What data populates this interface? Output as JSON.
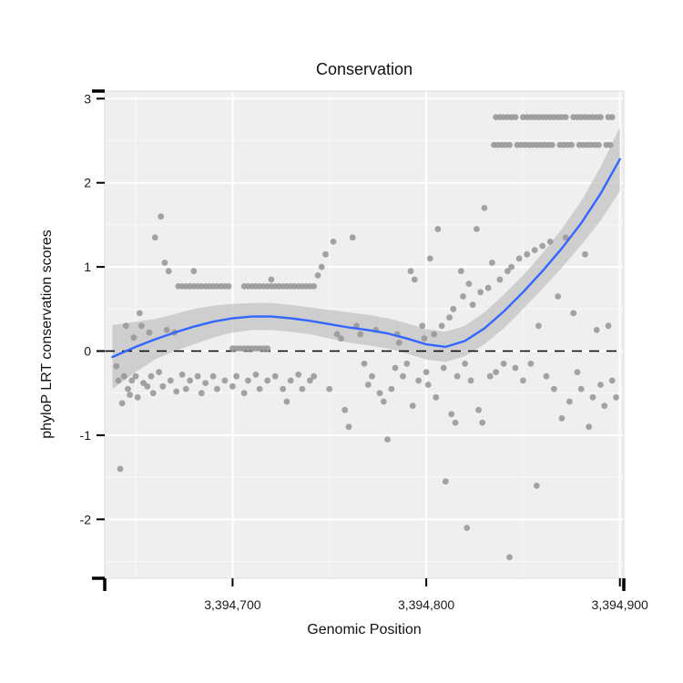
{
  "chart_data": {
    "type": "scatter",
    "title": "Conservation",
    "xlabel": "Genomic Position",
    "ylabel": "phyloP LRT conservation scores",
    "xlim": [
      3394634,
      3394902
    ],
    "ylim": [
      -2.7,
      3.09
    ],
    "x_ticks": [
      {
        "value": 3394700,
        "label": "3,394,700"
      },
      {
        "value": 3394800,
        "label": "3,394,800"
      },
      {
        "value": 3394900,
        "label": "3,394,900"
      }
    ],
    "y_ticks": [
      {
        "value": -2,
        "label": "-2"
      },
      {
        "value": -1,
        "label": "-1"
      },
      {
        "value": 0,
        "label": "0"
      },
      {
        "value": 1,
        "label": "1"
      },
      {
        "value": 2,
        "label": "2"
      },
      {
        "value": 3,
        "label": "3"
      }
    ],
    "x_minor": [
      3394650,
      3394750,
      3394850
    ],
    "y_minor": [
      -2.5,
      -1.5,
      -0.5,
      0.5,
      1.5,
      2.5
    ],
    "reference_line_y": 0,
    "grid": true,
    "legend": "none",
    "colors": {
      "panel": "#efefef",
      "grid_major": "#ffffff",
      "grid_minor": "#f7f7f7",
      "point": "#999999",
      "smooth_line": "#3366FF",
      "band": "#b8b8b8",
      "axis_text": "#1a1a1a",
      "tick": "#000000",
      "reference_line": "#000000",
      "panel_border": "#dcdcdc"
    },
    "points": [
      [
        3394640,
        -0.18
      ],
      [
        3394641,
        -0.35
      ],
      [
        3394642,
        -1.4
      ],
      [
        3394643,
        -0.62
      ],
      [
        3394644,
        -0.3
      ],
      [
        3394645,
        0.3
      ],
      [
        3394646,
        -0.45
      ],
      [
        3394647,
        -0.52
      ],
      [
        3394648,
        -0.35
      ],
      [
        3394649,
        0.16
      ],
      [
        3394650,
        -0.3
      ],
      [
        3394651,
        -0.55
      ],
      [
        3394652,
        0.45
      ],
      [
        3394653,
        0.3
      ],
      [
        3394654,
        -0.38
      ],
      [
        3394656,
        -0.42
      ],
      [
        3394657,
        0.22
      ],
      [
        3394658,
        -0.3
      ],
      [
        3394659,
        -0.5
      ],
      [
        3394660,
        1.35
      ],
      [
        3394662,
        -0.25
      ],
      [
        3394663,
        1.6
      ],
      [
        3394664,
        -0.42
      ],
      [
        3394665,
        1.05
      ],
      [
        3394666,
        0.25
      ],
      [
        3394667,
        0.95
      ],
      [
        3394668,
        -0.35
      ],
      [
        3394670,
        0.22
      ],
      [
        3394671,
        -0.48
      ],
      [
        3394674,
        -0.28
      ],
      [
        3394676,
        -0.45
      ],
      [
        3394678,
        -0.35
      ],
      [
        3394680,
        0.95
      ],
      [
        3394682,
        -0.3
      ],
      [
        3394684,
        -0.5
      ],
      [
        3394686,
        -0.38
      ],
      [
        3394690,
        -0.3
      ],
      [
        3394692,
        -0.45
      ],
      [
        3394696,
        -0.35
      ],
      [
        3394700,
        -0.42
      ],
      [
        3394702,
        -0.3
      ],
      [
        3394706,
        -0.5
      ],
      [
        3394708,
        -0.35
      ],
      [
        3394712,
        -0.28
      ],
      [
        3394714,
        -0.45
      ],
      [
        3394718,
        -0.35
      ],
      [
        3394720,
        0.85
      ],
      [
        3394722,
        -0.3
      ],
      [
        3394726,
        -0.45
      ],
      [
        3394728,
        -0.6
      ],
      [
        3394730,
        -0.35
      ],
      [
        3394734,
        -0.28
      ],
      [
        3394736,
        -0.45
      ],
      [
        3394740,
        -0.35
      ],
      [
        3394742,
        -0.3
      ],
      [
        3394744,
        0.9
      ],
      [
        3394746,
        1.0
      ],
      [
        3394748,
        1.15
      ],
      [
        3394750,
        -0.45
      ],
      [
        3394752,
        1.3
      ],
      [
        3394754,
        0.2
      ],
      [
        3394756,
        0.15
      ],
      [
        3394758,
        -0.7
      ],
      [
        3394760,
        -0.9
      ],
      [
        3394762,
        1.35
      ],
      [
        3394764,
        0.3
      ],
      [
        3394766,
        0.2
      ],
      [
        3394768,
        -0.15
      ],
      [
        3394770,
        -0.4
      ],
      [
        3394772,
        -0.3
      ],
      [
        3394774,
        0.25
      ],
      [
        3394776,
        -0.5
      ],
      [
        3394778,
        -0.6
      ],
      [
        3394780,
        -1.05
      ],
      [
        3394782,
        -0.45
      ],
      [
        3394784,
        -0.2
      ],
      [
        3394785,
        0.2
      ],
      [
        3394786,
        0.1
      ],
      [
        3394788,
        -0.3
      ],
      [
        3394790,
        -0.15
      ],
      [
        3394792,
        0.95
      ],
      [
        3394793,
        -0.65
      ],
      [
        3394794,
        0.85
      ],
      [
        3394796,
        -0.35
      ],
      [
        3394798,
        0.3
      ],
      [
        3394799,
        0.15
      ],
      [
        3394800,
        -0.25
      ],
      [
        3394801,
        -0.4
      ],
      [
        3394802,
        1.1
      ],
      [
        3394804,
        0.2
      ],
      [
        3394805,
        -0.55
      ],
      [
        3394806,
        1.45
      ],
      [
        3394808,
        0.3
      ],
      [
        3394809,
        -0.2
      ],
      [
        3394810,
        -1.55
      ],
      [
        3394812,
        0.4
      ],
      [
        3394813,
        -0.75
      ],
      [
        3394814,
        0.5
      ],
      [
        3394815,
        -0.85
      ],
      [
        3394816,
        -0.3
      ],
      [
        3394818,
        0.95
      ],
      [
        3394819,
        0.65
      ],
      [
        3394820,
        -0.15
      ],
      [
        3394821,
        -2.1
      ],
      [
        3394822,
        0.8
      ],
      [
        3394823,
        -0.35
      ],
      [
        3394824,
        0.55
      ],
      [
        3394826,
        1.45
      ],
      [
        3394827,
        -0.7
      ],
      [
        3394828,
        0.7
      ],
      [
        3394829,
        -0.85
      ],
      [
        3394830,
        1.7
      ],
      [
        3394832,
        0.75
      ],
      [
        3394833,
        -0.3
      ],
      [
        3394834,
        1.05
      ],
      [
        3394836,
        -0.25
      ],
      [
        3394838,
        0.85
      ],
      [
        3394840,
        -0.15
      ],
      [
        3394842,
        0.95
      ],
      [
        3394843,
        -2.45
      ],
      [
        3394844,
        1.0
      ],
      [
        3394846,
        -0.2
      ],
      [
        3394848,
        1.1
      ],
      [
        3394850,
        -0.35
      ],
      [
        3394852,
        1.15
      ],
      [
        3394854,
        -0.15
      ],
      [
        3394856,
        1.2
      ],
      [
        3394857,
        -1.6
      ],
      [
        3394858,
        0.3
      ],
      [
        3394860,
        1.25
      ],
      [
        3394862,
        -0.3
      ],
      [
        3394864,
        1.3
      ],
      [
        3394866,
        -0.45
      ],
      [
        3394868,
        0.65
      ],
      [
        3394870,
        -0.8
      ],
      [
        3394872,
        1.35
      ],
      [
        3394874,
        -0.6
      ],
      [
        3394876,
        0.45
      ],
      [
        3394878,
        -0.25
      ],
      [
        3394880,
        -0.45
      ],
      [
        3394882,
        1.15
      ],
      [
        3394884,
        -0.9
      ],
      [
        3394886,
        -0.55
      ],
      [
        3394888,
        0.25
      ],
      [
        3394890,
        -0.4
      ],
      [
        3394892,
        -0.65
      ],
      [
        3394894,
        0.3
      ],
      [
        3394896,
        -0.35
      ],
      [
        3394898,
        -0.55
      ],
      [
        3394672,
        0.77
      ],
      [
        3394674,
        0.77
      ],
      [
        3394676,
        0.77
      ],
      [
        3394678,
        0.77
      ],
      [
        3394680,
        0.77
      ],
      [
        3394682,
        0.77
      ],
      [
        3394684,
        0.77
      ],
      [
        3394686,
        0.77
      ],
      [
        3394688,
        0.77
      ],
      [
        3394690,
        0.77
      ],
      [
        3394692,
        0.77
      ],
      [
        3394694,
        0.77
      ],
      [
        3394696,
        0.77
      ],
      [
        3394698,
        0.77
      ],
      [
        3394706,
        0.77
      ],
      [
        3394708,
        0.77
      ],
      [
        3394710,
        0.77
      ],
      [
        3394712,
        0.77
      ],
      [
        3394714,
        0.77
      ],
      [
        3394716,
        0.77
      ],
      [
        3394718,
        0.77
      ],
      [
        3394720,
        0.77
      ],
      [
        3394722,
        0.77
      ],
      [
        3394724,
        0.77
      ],
      [
        3394726,
        0.77
      ],
      [
        3394728,
        0.77
      ],
      [
        3394730,
        0.77
      ],
      [
        3394732,
        0.77
      ],
      [
        3394734,
        0.77
      ],
      [
        3394736,
        0.77
      ],
      [
        3394738,
        0.77
      ],
      [
        3394740,
        0.77
      ],
      [
        3394742,
        0.77
      ],
      [
        3394700,
        0.03
      ],
      [
        3394702,
        0.03
      ],
      [
        3394704,
        0.03
      ],
      [
        3394706,
        0.03
      ],
      [
        3394708,
        0.03
      ],
      [
        3394710,
        0.03
      ],
      [
        3394712,
        0.03
      ],
      [
        3394714,
        0.03
      ],
      [
        3394716,
        0.03
      ],
      [
        3394718,
        0.03
      ],
      [
        3394836,
        2.78
      ],
      [
        3394838,
        2.78
      ],
      [
        3394840,
        2.78
      ],
      [
        3394842,
        2.78
      ],
      [
        3394844,
        2.78
      ],
      [
        3394846,
        2.78
      ],
      [
        3394850,
        2.78
      ],
      [
        3394852,
        2.78
      ],
      [
        3394854,
        2.78
      ],
      [
        3394856,
        2.78
      ],
      [
        3394858,
        2.78
      ],
      [
        3394860,
        2.78
      ],
      [
        3394862,
        2.78
      ],
      [
        3394864,
        2.78
      ],
      [
        3394866,
        2.78
      ],
      [
        3394868,
        2.78
      ],
      [
        3394870,
        2.78
      ],
      [
        3394872,
        2.78
      ],
      [
        3394876,
        2.78
      ],
      [
        3394878,
        2.78
      ],
      [
        3394880,
        2.78
      ],
      [
        3394882,
        2.78
      ],
      [
        3394884,
        2.78
      ],
      [
        3394886,
        2.78
      ],
      [
        3394888,
        2.78
      ],
      [
        3394890,
        2.78
      ],
      [
        3394894,
        2.78
      ],
      [
        3394896,
        2.78
      ],
      [
        3394835,
        2.45
      ],
      [
        3394837,
        2.45
      ],
      [
        3394839,
        2.45
      ],
      [
        3394841,
        2.45
      ],
      [
        3394843,
        2.45
      ],
      [
        3394847,
        2.45
      ],
      [
        3394849,
        2.45
      ],
      [
        3394851,
        2.45
      ],
      [
        3394853,
        2.45
      ],
      [
        3394855,
        2.45
      ],
      [
        3394857,
        2.45
      ],
      [
        3394859,
        2.45
      ],
      [
        3394861,
        2.45
      ],
      [
        3394863,
        2.45
      ],
      [
        3394865,
        2.45
      ],
      [
        3394869,
        2.45
      ],
      [
        3394871,
        2.45
      ],
      [
        3394873,
        2.45
      ],
      [
        3394875,
        2.45
      ],
      [
        3394879,
        2.45
      ],
      [
        3394881,
        2.45
      ],
      [
        3394883,
        2.45
      ],
      [
        3394885,
        2.45
      ],
      [
        3394887,
        2.45
      ],
      [
        3394889,
        2.45
      ],
      [
        3394893,
        2.45
      ],
      [
        3394895,
        2.45
      ]
    ],
    "smooth": {
      "x": [
        3394638,
        3394650,
        3394660,
        3394670,
        3394680,
        3394690,
        3394700,
        3394710,
        3394720,
        3394730,
        3394740,
        3394750,
        3394760,
        3394770,
        3394780,
        3394790,
        3394800,
        3394810,
        3394820,
        3394830,
        3394840,
        3394850,
        3394860,
        3394870,
        3394880,
        3394890,
        3394900
      ],
      "y": [
        -0.07,
        0.05,
        0.14,
        0.22,
        0.29,
        0.35,
        0.39,
        0.41,
        0.41,
        0.39,
        0.36,
        0.32,
        0.28,
        0.25,
        0.21,
        0.15,
        0.08,
        0.05,
        0.12,
        0.27,
        0.47,
        0.7,
        0.95,
        1.22,
        1.52,
        1.87,
        2.28
      ],
      "lower": [
        -0.45,
        -0.25,
        -0.1,
        0.0,
        0.08,
        0.16,
        0.22,
        0.25,
        0.25,
        0.23,
        0.2,
        0.15,
        0.1,
        0.07,
        0.03,
        -0.03,
        -0.1,
        -0.13,
        -0.06,
        0.08,
        0.27,
        0.5,
        0.74,
        0.99,
        1.26,
        1.55,
        1.9
      ],
      "upper": [
        0.31,
        0.35,
        0.38,
        0.44,
        0.5,
        0.54,
        0.56,
        0.57,
        0.57,
        0.55,
        0.52,
        0.49,
        0.46,
        0.43,
        0.39,
        0.33,
        0.26,
        0.23,
        0.3,
        0.46,
        0.67,
        0.9,
        1.16,
        1.45,
        1.78,
        2.19,
        2.66
      ]
    }
  }
}
